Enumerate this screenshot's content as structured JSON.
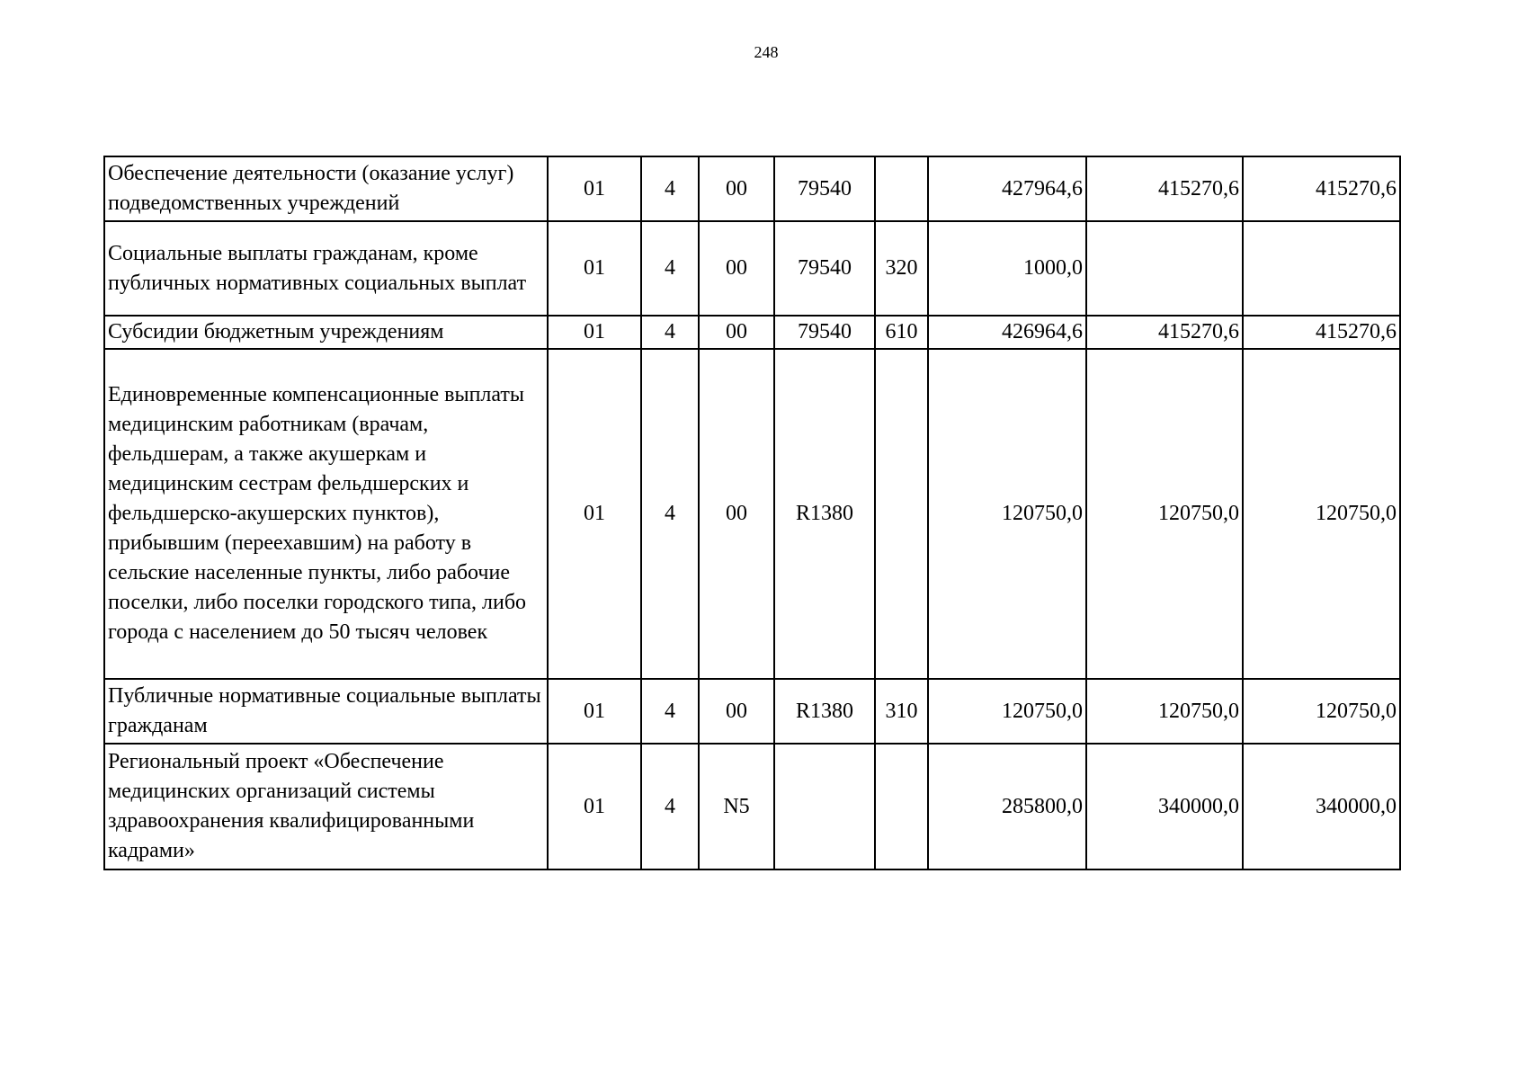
{
  "page_number": "248",
  "rows": [
    {
      "name": "Обеспечение деятельности (оказание услуг) подведомственных учреждений",
      "c1": "01",
      "c2": "4",
      "c3": "00",
      "c4": "79540",
      "c5": "",
      "v1": "427964,6",
      "v2": "415270,6",
      "v3": "415270,6"
    },
    {
      "name": "Социальные выплаты гражданам, кроме публичных нормативных социальных выплат",
      "c1": "01",
      "c2": "4",
      "c3": "00",
      "c4": "79540",
      "c5": "320",
      "v1": "1000,0",
      "v2": "",
      "v3": ""
    },
    {
      "name": "Субсидии бюджетным учреждениям",
      "c1": "01",
      "c2": "4",
      "c3": "00",
      "c4": "79540",
      "c5": "610",
      "v1": "426964,6",
      "v2": "415270,6",
      "v3": "415270,6"
    },
    {
      "name": "Единовременные компенсационные выплаты медицинским работникам (врачам, фельдшерам, а также акушеркам и медицинским сестрам фельдшерских и фельдшерско-акушерских пунктов), прибывшим (переехавшим) на работу в сельские населенные пункты, либо рабочие поселки, либо поселки городского типа, либо города с населением до 50 тысяч человек",
      "c1": "01",
      "c2": "4",
      "c3": "00",
      "c4": "R1380",
      "c5": "",
      "v1": "120750,0",
      "v2": "120750,0",
      "v3": "120750,0"
    },
    {
      "name": "Публичные нормативные социальные выплаты гражданам",
      "c1": "01",
      "c2": "4",
      "c3": "00",
      "c4": "R1380",
      "c5": "310",
      "v1": "120750,0",
      "v2": "120750,0",
      "v3": "120750,0"
    },
    {
      "name": "Региональный проект «Обеспечение медицинских организаций системы здравоохранения квалифицированными кадрами»",
      "c1": "01",
      "c2": "4",
      "c3": "N5",
      "c4": "",
      "c5": "",
      "v1": "285800,0",
      "v2": "340000,0",
      "v3": "340000,0"
    }
  ]
}
